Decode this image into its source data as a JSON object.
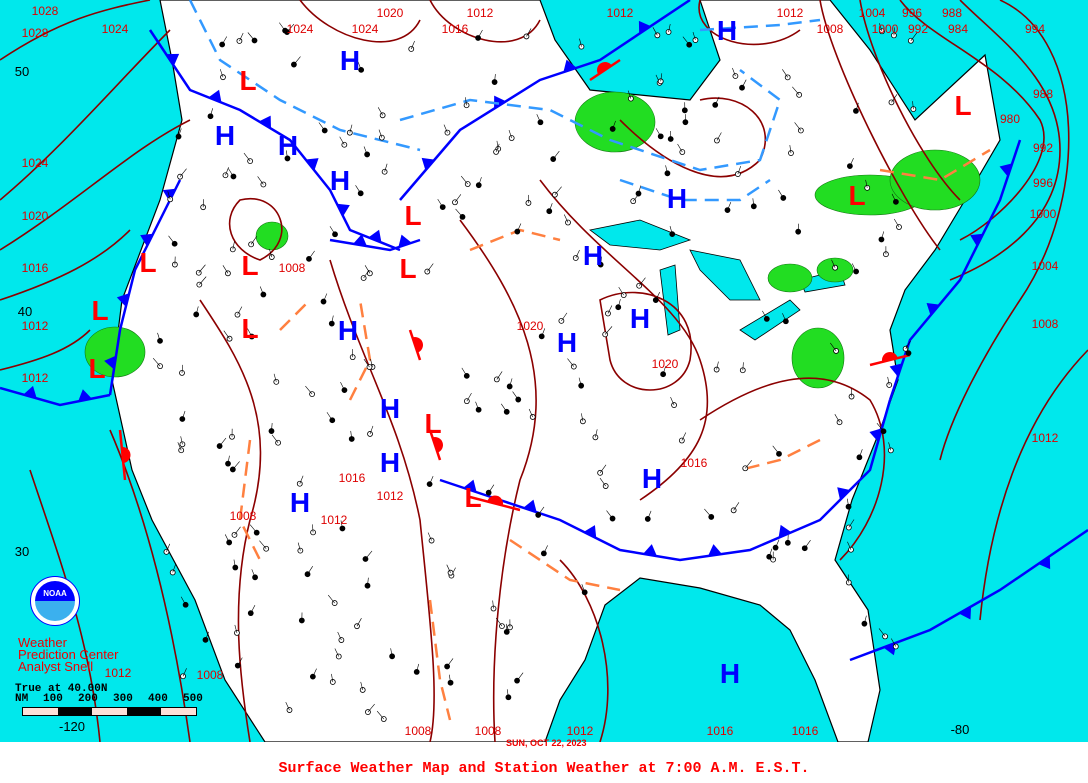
{
  "caption": "Surface Weather Map and Station Weather at 7:00 A.M. E.S.T.",
  "date": "SUN, OCT 22, 2023",
  "credit": {
    "line1": "Weather",
    "line2": "Prediction Center",
    "line3": "Analyst Snell"
  },
  "logo": {
    "text": "NOAA"
  },
  "scale": {
    "title": "True at 40.00N",
    "units": "NM",
    "ticks": [
      "100",
      "200",
      "300",
      "400",
      "500"
    ]
  },
  "colors": {
    "ocean": "#00e8ec",
    "land": "#ffffff",
    "isobar": "#8b0000",
    "high": "#0000ff",
    "low": "#ff0000",
    "cold_front": "#0000ff",
    "warm_front": "#ff0000",
    "trough": "#ff8040",
    "precip": "#22dd22"
  },
  "pressure_centers": {
    "highs": [
      "H",
      "H",
      "H",
      "H",
      "H",
      "H",
      "H",
      "H",
      "H",
      "H",
      "H",
      "H",
      "H",
      "H",
      "H"
    ],
    "lows": [
      "L",
      "L",
      "L",
      "L",
      "L",
      "L",
      "L",
      "L",
      "L",
      "L",
      "L",
      "L"
    ]
  },
  "isobar_labels": [
    "1028",
    "1028",
    "1024",
    "1024",
    "1024",
    "1020",
    "1012",
    "1016",
    "1012",
    "1012",
    "1008",
    "1004",
    "996",
    "988",
    "1000",
    "992",
    "984",
    "994",
    "1024",
    "1020",
    "1016",
    "1012",
    "1012",
    "988",
    "980",
    "992",
    "996",
    "1000",
    "1004",
    "1008",
    "1012",
    "1012",
    "1008",
    "1008",
    "1008",
    "1012",
    "1016",
    "1016",
    "1008",
    "1020",
    "1020",
    "1016",
    "1012",
    "1008",
    "1012",
    "1016"
  ],
  "lat_lon_labels": [
    "50",
    "40",
    "30",
    "-120",
    "-80"
  ]
}
